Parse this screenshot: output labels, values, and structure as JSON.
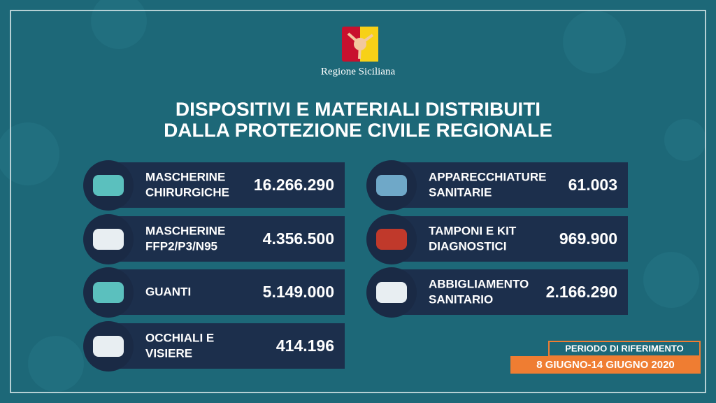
{
  "header": {
    "region": "Regione Siciliana",
    "title": [
      "DISPOSITIVI E MATERIALI DISTRIBUITI",
      "DALLA PROTEZIONE CIVILE REGIONALE"
    ]
  },
  "items": [
    {
      "label": [
        "MASCHERINE",
        "CHIRURGICHE"
      ],
      "value": "16.266.290"
    },
    {
      "label": [
        "MASCHERINE",
        "FFP2/P3/N95"
      ],
      "value": "4.356.500"
    },
    {
      "label": [
        "GUANTI"
      ],
      "value": "5.149.000"
    },
    {
      "label": [
        "OCCHIALI E",
        "VISIERE"
      ],
      "value": "414.196"
    },
    {
      "label": [
        "APPARECCHIATURE",
        "SANITARIE"
      ],
      "value": "61.003"
    },
    {
      "label": [
        "TAMPONI E KIT",
        "DIAGNOSTICI"
      ],
      "value": "969.900"
    },
    {
      "label": [
        "ABBIGLIAMENTO",
        "SANITARIO"
      ],
      "value": "2.166.290"
    }
  ],
  "period": {
    "label": "PERIODO DI RIFERIMENTO",
    "dates": "8 GIUGNO-14 GIUGNO 2020"
  }
}
